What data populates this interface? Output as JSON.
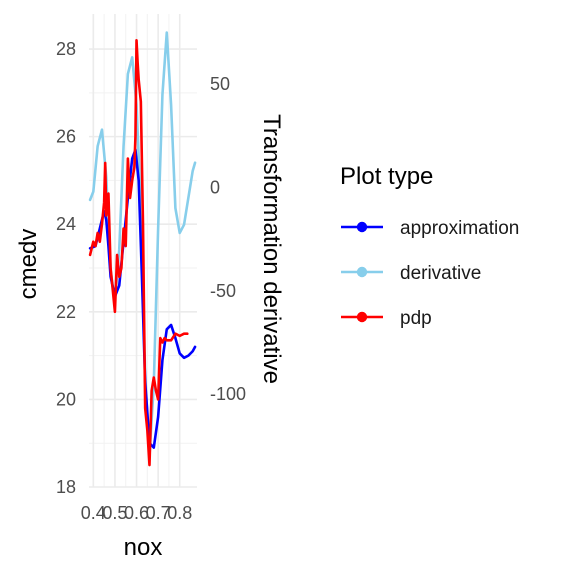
{
  "chart_data": {
    "type": "line",
    "xlabel": "nox",
    "ylabel": "cmedv",
    "y2label": "Transformation derivative",
    "xlim": [
      0.38,
      0.88
    ],
    "ylim": [
      18,
      28.8
    ],
    "y2lim": [
      -145,
      84
    ],
    "x_ticks": [
      {
        "value": 0.4,
        "label": "0.4"
      },
      {
        "value": 0.5,
        "label": "0.5"
      },
      {
        "value": 0.6,
        "label": "0.6"
      },
      {
        "value": 0.7,
        "label": "0.7"
      },
      {
        "value": 0.8,
        "label": "0.8"
      }
    ],
    "y_ticks": [
      {
        "value": 18,
        "label": "18"
      },
      {
        "value": 20,
        "label": "20"
      },
      {
        "value": 22,
        "label": "22"
      },
      {
        "value": 24,
        "label": "24"
      },
      {
        "value": 26,
        "label": "26"
      },
      {
        "value": 28,
        "label": "28"
      }
    ],
    "y2_ticks": [
      {
        "value": 50,
        "label": "50"
      },
      {
        "value": 0,
        "label": "0"
      },
      {
        "value": -50,
        "label": "-50"
      },
      {
        "value": -100,
        "label": "-100"
      }
    ],
    "grid": true,
    "legend": {
      "title": "Plot type",
      "position": "right"
    },
    "series": [
      {
        "name": "approximation",
        "color": "#0000ff",
        "axis": "left",
        "x": [
          0.385,
          0.41,
          0.43,
          0.45,
          0.46,
          0.47,
          0.48,
          0.5,
          0.52,
          0.54,
          0.56,
          0.58,
          0.595,
          0.61,
          0.625,
          0.64,
          0.66,
          0.68,
          0.7,
          0.72,
          0.74,
          0.76,
          0.78,
          0.8,
          0.82,
          0.84,
          0.86,
          0.871
        ],
        "y": [
          23.45,
          23.5,
          23.9,
          24.3,
          24.1,
          23.5,
          22.8,
          22.35,
          22.6,
          23.6,
          24.6,
          25.5,
          25.7,
          25.0,
          22.8,
          20.4,
          19.0,
          18.9,
          19.6,
          20.9,
          21.6,
          21.7,
          21.4,
          21.05,
          20.95,
          21.0,
          21.1,
          21.2
        ]
      },
      {
        "name": "derivative",
        "color": "#87ceeb",
        "axis": "right",
        "x": [
          0.385,
          0.4,
          0.42,
          0.44,
          0.46,
          0.48,
          0.5,
          0.52,
          0.54,
          0.56,
          0.58,
          0.6,
          0.62,
          0.64,
          0.66,
          0.68,
          0.7,
          0.72,
          0.74,
          0.76,
          0.78,
          0.8,
          0.82,
          0.84,
          0.86,
          0.871
        ],
        "y": [
          -6,
          -2,
          20,
          28,
          5,
          -40,
          -55,
          -30,
          20,
          55,
          63,
          40,
          -10,
          -90,
          -130,
          -95,
          -20,
          45,
          75,
          40,
          -10,
          -22,
          -18,
          -5,
          8,
          12
        ]
      },
      {
        "name": "pdp",
        "color": "#ff0000",
        "axis": "left",
        "x": [
          0.385,
          0.39,
          0.4,
          0.41,
          0.42,
          0.43,
          0.44,
          0.45,
          0.455,
          0.46,
          0.47,
          0.48,
          0.49,
          0.5,
          0.51,
          0.52,
          0.53,
          0.54,
          0.55,
          0.56,
          0.57,
          0.58,
          0.59,
          0.595,
          0.6,
          0.605,
          0.61,
          0.62,
          0.63,
          0.64,
          0.65,
          0.66,
          0.67,
          0.68,
          0.69,
          0.7,
          0.71,
          0.72,
          0.73,
          0.74,
          0.76,
          0.78,
          0.8,
          0.82,
          0.835
        ],
        "y": [
          23.3,
          23.4,
          23.6,
          23.5,
          23.8,
          23.6,
          24.0,
          24.5,
          25.4,
          24.2,
          24.7,
          23.0,
          22.5,
          22.0,
          23.3,
          22.8,
          23.0,
          23.9,
          23.5,
          25.5,
          24.6,
          25.0,
          25.3,
          26.0,
          28.2,
          27.7,
          27.3,
          26.8,
          24.0,
          19.8,
          19.3,
          18.5,
          20.2,
          20.5,
          20.2,
          20.0,
          21.4,
          21.3,
          21.4,
          21.35,
          21.35,
          21.5,
          21.45,
          21.5,
          21.5
        ]
      }
    ]
  }
}
